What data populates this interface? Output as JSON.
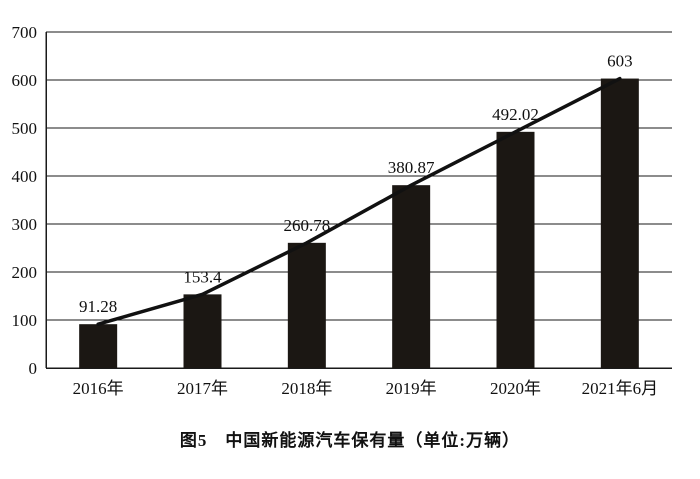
{
  "chart_data": {
    "type": "bar",
    "overlay": "line",
    "title": "图5　中国新能源汽车保有量（单位:万辆）",
    "categories": [
      "2016年",
      "2017年",
      "2018年",
      "2019年",
      "2020年",
      "2021年6月"
    ],
    "values": [
      91.28,
      153.4,
      260.78,
      380.87,
      492.02,
      603
    ],
    "value_labels": [
      "91.28",
      "153.4",
      "260.78",
      "380.87",
      "492.02",
      "603"
    ],
    "ylim": [
      0,
      700
    ],
    "ytick_step": 100,
    "ytick_labels": [
      "0",
      "100",
      "200",
      "300",
      "400",
      "500",
      "600",
      "700"
    ],
    "grid": true,
    "legend": "none",
    "bar_color": "#1b1713",
    "line_color": "#111111",
    "grid_color": "#1a1a1a",
    "axis_color": "#1a1a1a"
  },
  "caption": "图5　中国新能源汽车保有量（单位:万辆）"
}
